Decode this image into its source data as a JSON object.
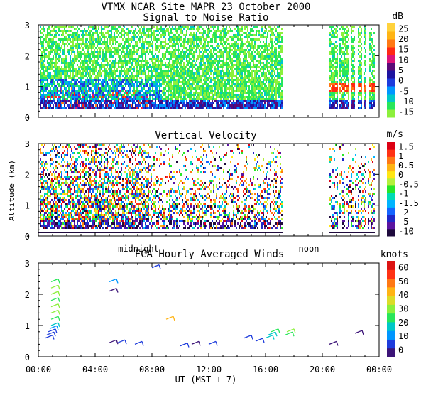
{
  "header": {
    "title": "VTMX  NCAR Site  MAPR 23 October 2000"
  },
  "colors": {
    "snr_scale": [
      "#8cf03c",
      "#28e65a",
      "#00c8c8",
      "#0096ff",
      "#1e3cdc",
      "#1e14a0",
      "#5a0a78",
      "#dc1478",
      "#ff2814",
      "#ff7814",
      "#ffb414",
      "#ffd23c"
    ],
    "vel_scale": [
      "#1e0a3c",
      "#5a14a0",
      "#1e28c8",
      "#1464ff",
      "#00b4ff",
      "#00dcb4",
      "#28e628",
      "#b4f03c",
      "#ffe614",
      "#ffb414",
      "#ff7814",
      "#ff3214",
      "#dc0014"
    ],
    "wind_scale": [
      "#3c1478",
      "#1e3cdc",
      "#0096ff",
      "#00c8c8",
      "#28e65a",
      "#8cf03c",
      "#dcdc28",
      "#ffb414",
      "#ff7814",
      "#ff3214",
      "#dc1414"
    ]
  },
  "chart_data": [
    {
      "type": "heatmap",
      "title": "Signal to Noise Ratio",
      "colorbar": {
        "unit": "dB",
        "ticks": [
          "25",
          "20",
          "15",
          "10",
          "5",
          "0",
          "-5",
          "-10",
          "-15"
        ]
      },
      "y_ticks": [
        "0",
        "1",
        "2",
        "3"
      ],
      "ylim": [
        0,
        3
      ],
      "x_hours": [
        0,
        24
      ]
    },
    {
      "type": "heatmap",
      "title": "Vertical Velocity",
      "ylabel": "Altitude (km)",
      "colorbar": {
        "unit": "m/s",
        "ticks": [
          "1.5",
          "1",
          "0.5",
          "0",
          "-0.5",
          "-1",
          "-1.5",
          "-2",
          "-5",
          "-10"
        ]
      },
      "y_ticks": [
        "0",
        "1",
        "2",
        "3"
      ],
      "ylim": [
        0,
        3
      ],
      "time_markers": [
        "midnight",
        "noon"
      ]
    },
    {
      "type": "scatter",
      "title": "FCA Hourly Averaged Winds",
      "xlabel": "UT  (MST + 7)",
      "colorbar": {
        "unit": "knots",
        "ticks": [
          "60",
          "50",
          "40",
          "30",
          "20",
          "10",
          "0"
        ]
      },
      "y_ticks": [
        "0",
        "1",
        "2",
        "3"
      ],
      "x_ticks": [
        "00:00",
        "04:00",
        "08:00",
        "12:00",
        "16:00",
        "20:00",
        "00:00"
      ],
      "ylim": [
        0,
        3
      ],
      "xlim_hours": [
        0,
        24
      ],
      "barbs": [
        {
          "t": 0.5,
          "z": 0.6,
          "spd": 8
        },
        {
          "t": 0.6,
          "z": 0.7,
          "spd": 9
        },
        {
          "t": 0.7,
          "z": 0.8,
          "spd": 10
        },
        {
          "t": 0.8,
          "z": 0.9,
          "spd": 15
        },
        {
          "t": 0.9,
          "z": 1.0,
          "spd": 22
        },
        {
          "t": 0.9,
          "z": 1.2,
          "spd": 28
        },
        {
          "t": 0.9,
          "z": 1.4,
          "spd": 30
        },
        {
          "t": 0.9,
          "z": 1.6,
          "spd": 30
        },
        {
          "t": 0.9,
          "z": 1.8,
          "spd": 28
        },
        {
          "t": 0.9,
          "z": 2.0,
          "spd": 30
        },
        {
          "t": 0.9,
          "z": 2.2,
          "spd": 30
        },
        {
          "t": 0.9,
          "z": 2.4,
          "spd": 28
        },
        {
          "t": 5.0,
          "z": 0.45,
          "spd": 5
        },
        {
          "t": 5.0,
          "z": 2.1,
          "spd": 4
        },
        {
          "t": 5.0,
          "z": 2.4,
          "spd": 12
        },
        {
          "t": 5.6,
          "z": 0.45,
          "spd": 8
        },
        {
          "t": 6.8,
          "z": 0.4,
          "spd": 6
        },
        {
          "t": 8.0,
          "z": 2.85,
          "spd": 8
        },
        {
          "t": 9.0,
          "z": 1.2,
          "spd": 45
        },
        {
          "t": 10.0,
          "z": 0.35,
          "spd": 6
        },
        {
          "t": 10.8,
          "z": 0.4,
          "spd": 5
        },
        {
          "t": 12.0,
          "z": 0.4,
          "spd": 6
        },
        {
          "t": 14.5,
          "z": 0.6,
          "spd": 7
        },
        {
          "t": 15.3,
          "z": 0.5,
          "spd": 7
        },
        {
          "t": 16.0,
          "z": 0.6,
          "spd": 20
        },
        {
          "t": 16.2,
          "z": 0.7,
          "spd": 22
        },
        {
          "t": 16.4,
          "z": 0.8,
          "spd": 25
        },
        {
          "t": 17.4,
          "z": 0.7,
          "spd": 28
        },
        {
          "t": 17.5,
          "z": 0.8,
          "spd": 30
        },
        {
          "t": 20.5,
          "z": 0.4,
          "spd": 5
        },
        {
          "t": 22.3,
          "z": 0.75,
          "spd": 4
        }
      ]
    }
  ]
}
